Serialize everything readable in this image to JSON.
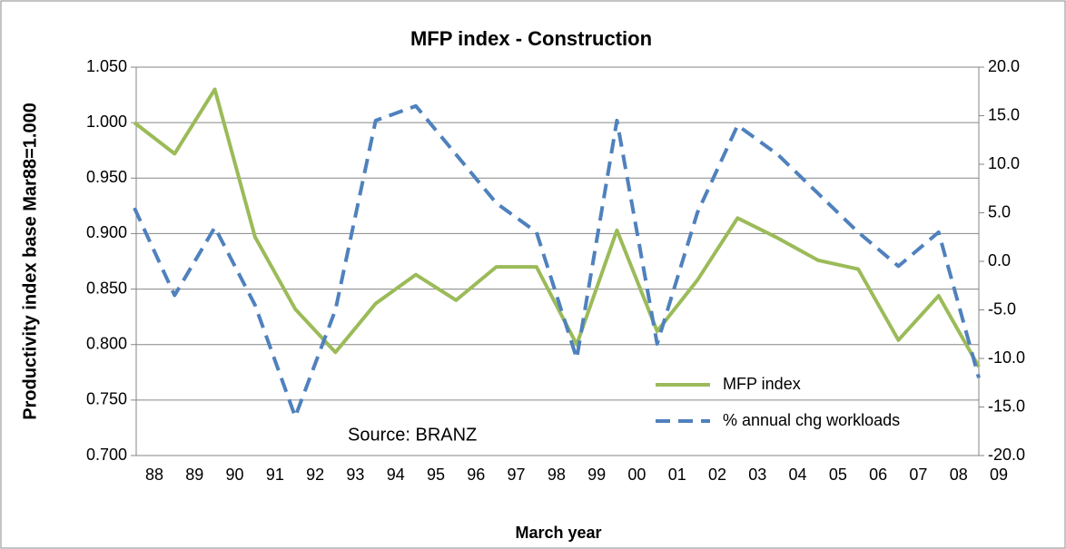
{
  "chart_data": {
    "type": "line",
    "title": "MFP index - Construction",
    "x_label": "March year",
    "y_label": "Productivity index base Mar88=1.000",
    "annotation": "Source: BRANZ",
    "categories": [
      "88",
      "89",
      "90",
      "91",
      "92",
      "93",
      "94",
      "95",
      "96",
      "97",
      "98",
      "99",
      "00",
      "01",
      "02",
      "03",
      "04",
      "05",
      "06",
      "07",
      "08",
      "09"
    ],
    "series": [
      {
        "name": "MFP index",
        "color": "#9bbb59",
        "dash": false,
        "values": [
          1.0,
          0.972,
          1.03,
          0.897,
          0.832,
          0.793,
          0.837,
          0.863,
          0.84,
          0.87,
          0.87,
          0.8,
          0.903,
          0.812,
          0.858,
          0.914,
          0.896,
          0.876,
          0.868,
          0.804,
          0.844,
          0.78
        ]
      },
      {
        "name": "% annual chg workloads",
        "color": "#4f81bd",
        "dash": true,
        "axis": "y2",
        "values": [
          5.5,
          -3.5,
          3.5,
          -4.5,
          -16,
          -5,
          14.5,
          16,
          11,
          6,
          3,
          -10,
          14.5,
          -8.5,
          5,
          14,
          11,
          7,
          3,
          -0.5,
          3,
          -12
        ]
      }
    ],
    "ylim": [
      0.7,
      1.05
    ],
    "yticks": [
      {
        "value": 0.7,
        "label": "0.700"
      },
      {
        "value": 0.75,
        "label": "0.750"
      },
      {
        "value": 0.8,
        "label": "0.800"
      },
      {
        "value": 0.85,
        "label": "0.850"
      },
      {
        "value": 0.9,
        "label": "0.900"
      },
      {
        "value": 0.95,
        "label": "0.950"
      },
      {
        "value": 1.0,
        "label": "1.000"
      },
      {
        "value": 1.05,
        "label": "1.050"
      }
    ],
    "y2lim": [
      -20,
      20
    ],
    "y2ticks": [
      {
        "value": -20,
        "label": "-20.0"
      },
      {
        "value": -15,
        "label": "-15.0"
      },
      {
        "value": -10,
        "label": "-10.0"
      },
      {
        "value": -5,
        "label": "-5.0"
      },
      {
        "value": 0,
        "label": "0.0"
      },
      {
        "value": 5,
        "label": "5.0"
      },
      {
        "value": 10,
        "label": "10.0"
      },
      {
        "value": 15,
        "label": "15.0"
      },
      {
        "value": 20,
        "label": "20.0"
      }
    ],
    "grid": true,
    "legend": "lower right"
  }
}
